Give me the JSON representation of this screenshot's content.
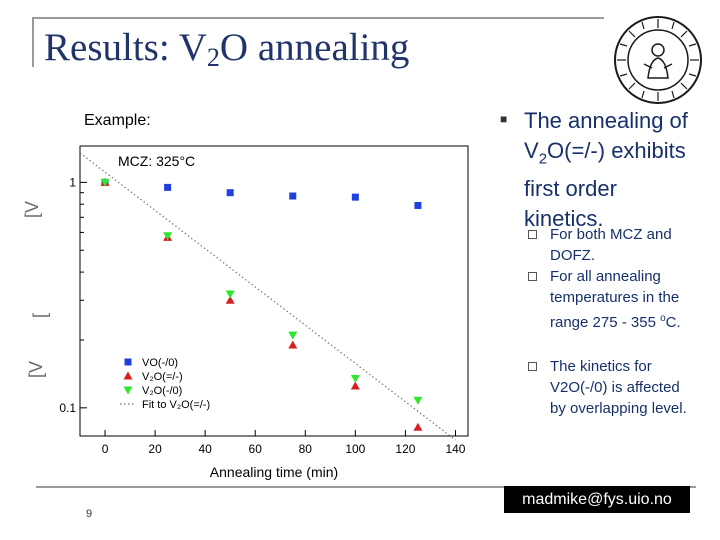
{
  "slide": {
    "title_main": "Results: V",
    "title_sub": "2",
    "title_tail": "O annealing",
    "example_label": "Example:",
    "main_bullet": {
      "pre": "The annealing of V",
      "sub": "2",
      "post": "O(=/-) exhibits first order kinetics."
    },
    "sub_bullets": [
      {
        "text": "For both MCZ and DOFZ."
      },
      {
        "pre": "For all annealing temperatures in the range 275 - 355 ",
        "sup": "o",
        "post": "C."
      },
      {
        "text": "The kinetics for V2O(-/0) is affected by overlapping level."
      }
    ],
    "email": "madmike@fys.uio.no",
    "page_number": "9"
  },
  "colors": {
    "title": "#22356b",
    "body_text": "#17306b",
    "vo": "#1f3fe0",
    "v2o_eq": "#d62020",
    "v2o_0": "#2ee62e"
  },
  "chart_data": {
    "type": "scatter",
    "annotation": "MCZ: 325°C",
    "xlabel": "Annealing time (min)",
    "ylabel": "",
    "x_ticks": [
      "0",
      "20",
      "40",
      "60",
      "80",
      "100",
      "120",
      "140"
    ],
    "xlim": [
      -10,
      145
    ],
    "ylim": [
      0.075,
      1.45
    ],
    "yscale": "log",
    "y_ticks": [
      {
        "value": 1,
        "label": "1"
      },
      {
        "value": 0.1,
        "label": "0.1"
      }
    ],
    "legend_placement": "bottom-left",
    "series": [
      {
        "name": "VO(-/0)",
        "marker": "square",
        "color": "#1f3fe0",
        "x": [
          0,
          25,
          50,
          75,
          100,
          125
        ],
        "y": [
          1.0,
          0.95,
          0.9,
          0.87,
          0.86,
          0.79
        ]
      },
      {
        "name": "V₂O(=/-)",
        "marker": "triangle-up",
        "color": "#d62020",
        "x": [
          0,
          25,
          50,
          75,
          100,
          125
        ],
        "y": [
          1.0,
          0.57,
          0.3,
          0.19,
          0.125,
          0.082
        ]
      },
      {
        "name": "V₂O(-/0)",
        "marker": "triangle-down",
        "color": "#2ee62e",
        "x": [
          0,
          25,
          50,
          75,
          100,
          125
        ],
        "y": [
          1.0,
          0.58,
          0.32,
          0.21,
          0.135,
          0.108
        ]
      },
      {
        "name": "Fit to V₂O(=/-)",
        "style": "dotted-line",
        "color": "#777777",
        "x": [
          -10,
          140
        ],
        "y": [
          1.35,
          0.072
        ]
      }
    ]
  }
}
